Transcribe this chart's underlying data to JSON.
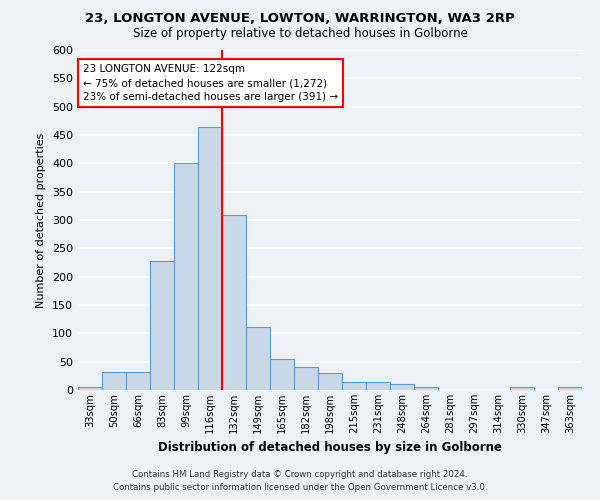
{
  "title1": "23, LONGTON AVENUE, LOWTON, WARRINGTON, WA3 2RP",
  "title2": "Size of property relative to detached houses in Golborne",
  "xlabel": "Distribution of detached houses by size in Golborne",
  "ylabel": "Number of detached properties",
  "bar_labels": [
    "33sqm",
    "50sqm",
    "66sqm",
    "83sqm",
    "99sqm",
    "116sqm",
    "132sqm",
    "149sqm",
    "165sqm",
    "182sqm",
    "198sqm",
    "215sqm",
    "231sqm",
    "248sqm",
    "264sqm",
    "281sqm",
    "297sqm",
    "314sqm",
    "330sqm",
    "347sqm",
    "363sqm"
  ],
  "bar_values": [
    5,
    32,
    32,
    228,
    401,
    465,
    308,
    112,
    54,
    40,
    30,
    14,
    14,
    10,
    5,
    0,
    0,
    0,
    5,
    0,
    5
  ],
  "bar_color": "#c8d8e8",
  "bar_edge_color": "#5b9bd5",
  "vline_color": "red",
  "annotation_title": "23 LONGTON AVENUE: 122sqm",
  "annotation_line1": "← 75% of detached houses are smaller (1,272)",
  "annotation_line2": "23% of semi-detached houses are larger (391) →",
  "annotation_box_color": "white",
  "annotation_box_edge": "red",
  "ylim": [
    0,
    600
  ],
  "yticks": [
    0,
    50,
    100,
    150,
    200,
    250,
    300,
    350,
    400,
    450,
    500,
    550,
    600
  ],
  "footnote1": "Contains HM Land Registry data © Crown copyright and database right 2024.",
  "footnote2": "Contains public sector information licensed under the Open Government Licence v3.0.",
  "bg_color": "#eef2f7",
  "grid_color": "white"
}
